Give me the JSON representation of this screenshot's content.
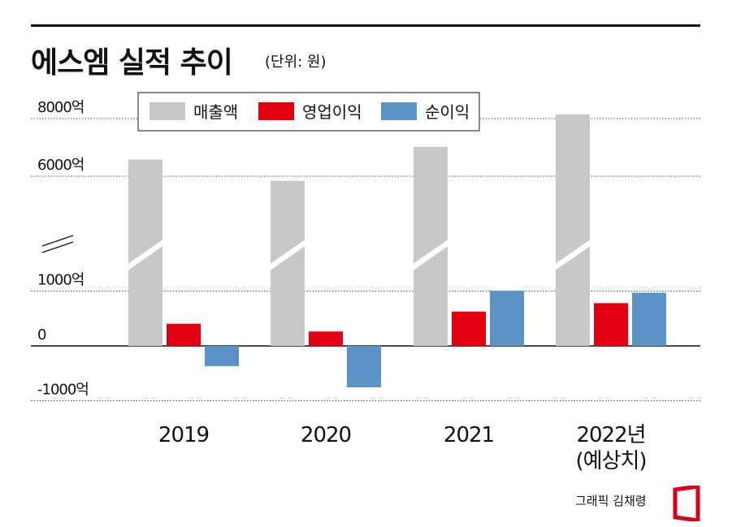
{
  "header": {
    "title": "에스엠 실적 추이",
    "unit": "(단위: 원)"
  },
  "credit": "그래픽 김채령",
  "colors": {
    "revenue": "#c8c8c8",
    "operating_profit": "#e0000f",
    "net_profit": "#5b93c7",
    "brand_red": "#d9001b"
  },
  "chart_data": {
    "type": "bar",
    "categories": [
      "2019",
      "2020",
      "2021",
      "2022년\n(예상치)"
    ],
    "series": [
      {
        "name": "매출액",
        "values": [
          6578,
          5799,
          7016,
          8145
        ]
      },
      {
        "name": "영업이익",
        "values": [
          404,
          263,
          627,
          780
        ]
      },
      {
        "name": "순이익",
        "values": [
          -369,
          -755,
          1014,
          970
        ]
      }
    ],
    "y_ticks": [
      {
        "value": 8000,
        "label": "8000억"
      },
      {
        "value": 6000,
        "label": "6000억"
      },
      {
        "value": 1000,
        "label": "1000억"
      },
      {
        "value": 0,
        "label": "0"
      },
      {
        "value": -1000,
        "label": "-1000억"
      }
    ],
    "axis_break": {
      "from": 1000,
      "to": 5000
    },
    "ylim": [
      -1000,
      8000
    ],
    "grid": true,
    "legend_position": "top"
  }
}
